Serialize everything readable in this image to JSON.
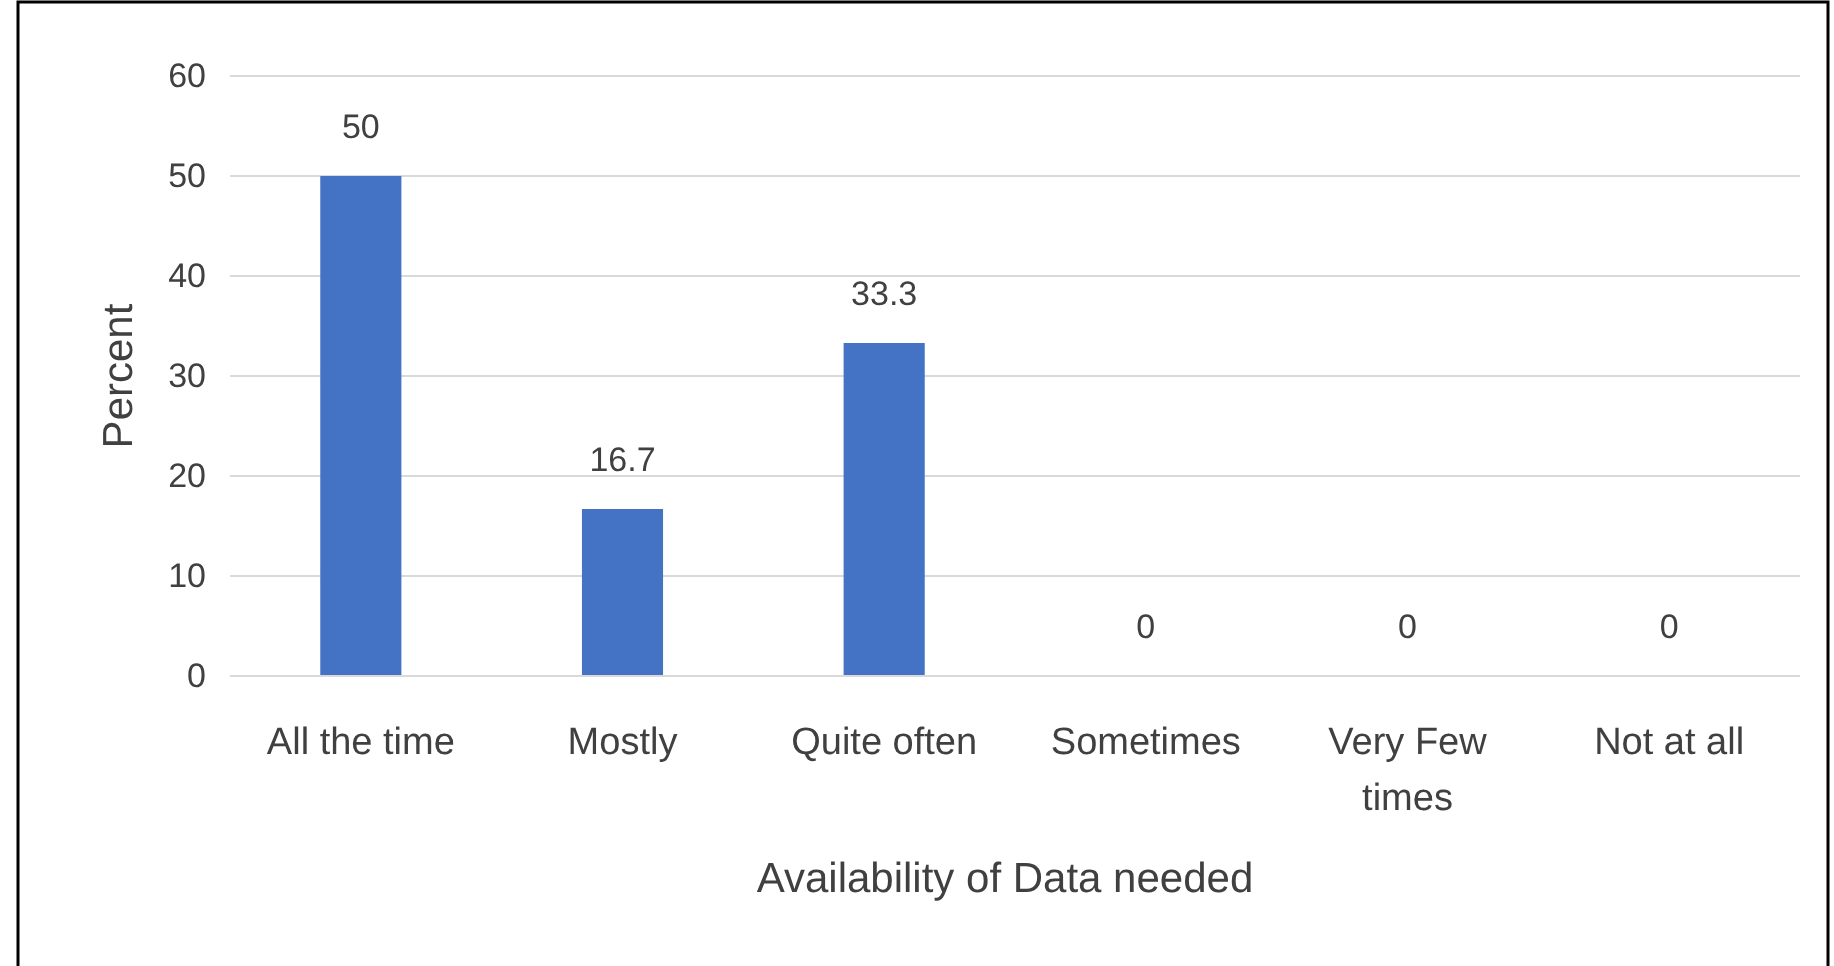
{
  "chart_data": {
    "type": "bar",
    "xlabel": "Availability of Data needed",
    "ylabel": "Percent",
    "categories": [
      "All the time",
      "Mostly",
      "Quite often",
      "Sometimes",
      "Very Few times",
      "Not at all"
    ],
    "values": [
      50,
      16.7,
      33.3,
      0,
      0,
      0
    ],
    "color": "#4472c4",
    "ylim": [
      0,
      60
    ],
    "yticks": [
      0,
      10,
      20,
      30,
      40,
      50,
      60
    ],
    "grid": "y",
    "data_labels": true
  }
}
